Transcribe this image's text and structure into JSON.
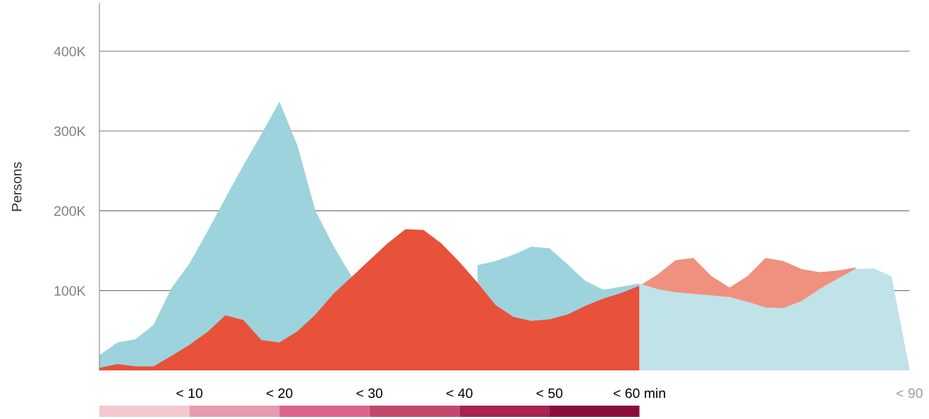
{
  "chart_data": {
    "type": "area",
    "ylabel": "Persons",
    "categories": [
      null,
      null,
      null,
      null,
      null,
      "< 10",
      null,
      null,
      null,
      null,
      "< 20",
      null,
      null,
      null,
      null,
      "< 30",
      null,
      null,
      null,
      null,
      "< 40",
      null,
      null,
      null,
      null,
      "< 50",
      null,
      null,
      null,
      null,
      "< 60 min",
      null,
      null,
      null,
      null,
      null,
      null,
      null,
      null,
      null,
      null,
      null,
      null,
      null,
      null,
      "< 90"
    ],
    "ylim": [
      0,
      460000
    ],
    "yticks": [
      {
        "value": 100000,
        "label": "100K"
      },
      {
        "value": 200000,
        "label": "200K"
      },
      {
        "value": 300000,
        "label": "300K"
      },
      {
        "value": 400000,
        "label": "400K"
      }
    ],
    "grid": "y",
    "legend": false,
    "series": [
      {
        "color": "#9dd3dc",
        "values": [
          19000,
          35000,
          39000,
          57000,
          103000,
          134000,
          174000,
          216000,
          257000,
          296000,
          337000,
          282000,
          200000,
          156000,
          118000,
          null,
          null,
          null,
          null,
          null,
          null,
          132000,
          137000,
          145000,
          155000,
          153000,
          133000,
          112000,
          101000,
          105000,
          109000,
          null,
          null,
          null,
          null,
          null,
          null,
          null,
          null,
          null,
          null,
          null,
          null,
          null,
          null,
          null
        ]
      },
      {
        "color": "#e8513a",
        "values": [
          3000,
          8000,
          5000,
          5000,
          18000,
          32000,
          48000,
          69000,
          63000,
          38000,
          35000,
          49000,
          70000,
          96000,
          117000,
          138000,
          159000,
          177000,
          176000,
          159000,
          136000,
          110000,
          82000,
          67000,
          62000,
          64000,
          70000,
          81000,
          90000,
          97000,
          106000,
          null,
          null,
          null,
          null,
          null,
          null,
          null,
          null,
          null,
          null,
          null,
          null,
          null,
          null,
          null
        ]
      },
      {
        "color": "#f0917f",
        "values": [
          null,
          null,
          null,
          null,
          null,
          null,
          null,
          null,
          null,
          null,
          null,
          null,
          null,
          null,
          null,
          null,
          null,
          null,
          null,
          null,
          null,
          null,
          null,
          null,
          null,
          null,
          null,
          null,
          null,
          null,
          106000,
          120000,
          138000,
          141000,
          118000,
          104000,
          118000,
          141000,
          137000,
          127000,
          123000,
          125000,
          129000,
          null,
          116000,
          0
        ]
      },
      {
        "color": "#bfe3e9",
        "values": [
          null,
          null,
          null,
          null,
          null,
          null,
          null,
          null,
          null,
          null,
          null,
          null,
          null,
          null,
          null,
          null,
          null,
          null,
          null,
          null,
          null,
          null,
          null,
          null,
          null,
          null,
          null,
          null,
          null,
          null,
          109000,
          102000,
          98000,
          96000,
          94000,
          92000,
          86000,
          79000,
          78000,
          87000,
          102000,
          115000,
          127000,
          128000,
          118000,
          0
        ]
      }
    ]
  }
}
